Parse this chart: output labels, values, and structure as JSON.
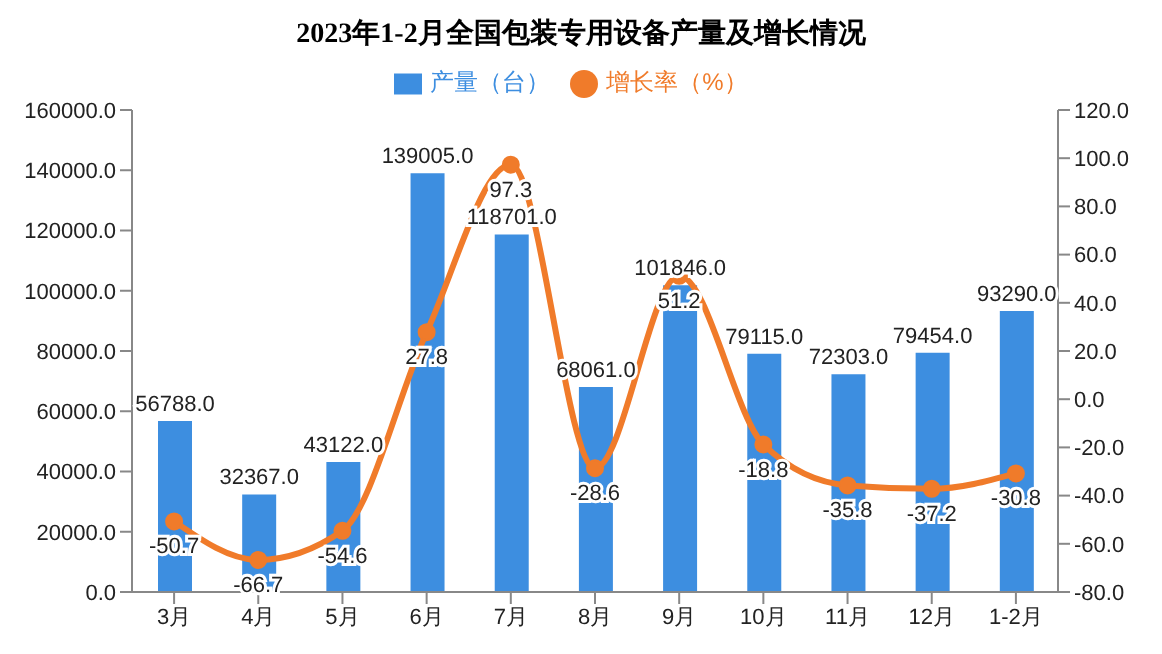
{
  "chart_data": {
    "type": "bar",
    "title": "2023年1-2月全国包装专用设备产量及增长情况",
    "categories": [
      "3月",
      "4月",
      "5月",
      "6月",
      "7月",
      "8月",
      "9月",
      "10月",
      "11月",
      "12月",
      "1-2月"
    ],
    "series": [
      {
        "name": "产量（台）",
        "color": "#3d8ee0",
        "values": [
          56788,
          32367,
          43122,
          139005,
          118701,
          68061,
          101846,
          79115,
          72303,
          79454,
          93290
        ],
        "value_labels": [
          "56788.0",
          "32367.0",
          "43122.0",
          "139005.0",
          "118701.0",
          "68061.0",
          "101846.0",
          "79115.0",
          "72303.0",
          "79454.0",
          "93290.0"
        ]
      },
      {
        "name": "增长率（%）",
        "type": "line",
        "axis": "y2",
        "color": "#f07b2a",
        "values": [
          -50.7,
          -66.7,
          -54.6,
          27.8,
          97.3,
          -28.6,
          51.2,
          -18.8,
          -35.8,
          -37.2,
          -30.8
        ],
        "value_labels": [
          "-50.7",
          "-66.7",
          "-54.6",
          "27.8",
          "97.3",
          "-28.6",
          "51.2",
          "-18.8",
          "-35.8",
          "-37.2",
          "-30.8"
        ]
      }
    ],
    "ylim": [
      0,
      160000
    ],
    "yticks": [
      {
        "value": 0,
        "label": "0.0"
      },
      {
        "value": 20000,
        "label": "20000.0"
      },
      {
        "value": 40000,
        "label": "40000.0"
      },
      {
        "value": 60000,
        "label": "60000.0"
      },
      {
        "value": 80000,
        "label": "80000.0"
      },
      {
        "value": 100000,
        "label": "100000.0"
      },
      {
        "value": 120000,
        "label": "120000.0"
      },
      {
        "value": 140000,
        "label": "140000.0"
      },
      {
        "value": 160000,
        "label": "160000.0"
      }
    ],
    "y2lim": [
      -80,
      120
    ],
    "y2ticks": [
      {
        "value": -80,
        "label": "-80.0"
      },
      {
        "value": -60,
        "label": "-60.0"
      },
      {
        "value": -40,
        "label": "-40.0"
      },
      {
        "value": -20,
        "label": "-20.0"
      },
      {
        "value": 0,
        "label": "0.0"
      },
      {
        "value": 20,
        "label": "20.0"
      },
      {
        "value": 40,
        "label": "40.0"
      },
      {
        "value": 60,
        "label": "60.0"
      },
      {
        "value": 80,
        "label": "80.0"
      },
      {
        "value": 100,
        "label": "100.0"
      },
      {
        "value": 120,
        "label": "120.0"
      }
    ],
    "legend": "top",
    "grid": false,
    "marker": "circle",
    "line_style": "solid"
  }
}
